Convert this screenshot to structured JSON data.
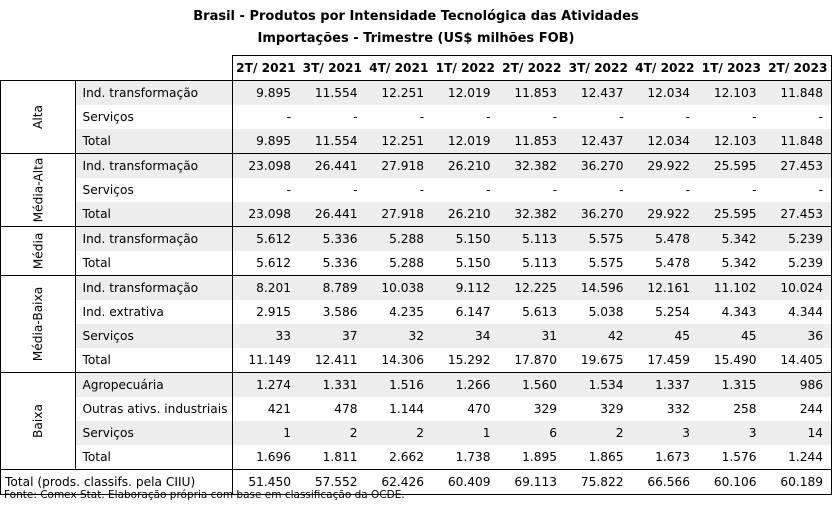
{
  "title_line1": "Brasil - Produtos por Intensidade Tecnológica das Atividades",
  "title_line2": "Importações - Trimestre (US$ milhões FOB)",
  "columns": [
    "2T/ 2021",
    "3T/ 2021",
    "4T/ 2021",
    "1T/ 2022",
    "2T/ 2022",
    "3T/ 2022",
    "4T/ 2022",
    "1T/ 2023",
    "2T/ 2023"
  ],
  "groups": [
    {
      "name": "Alta",
      "rows": [
        {
          "label": "Ind. transformação",
          "values": [
            "9.895",
            "11.554",
            "12.251",
            "12.019",
            "11.853",
            "12.437",
            "12.034",
            "12.103",
            "11.848"
          ]
        },
        {
          "label": "Serviços",
          "values": [
            "-",
            "-",
            "-",
            "-",
            "-",
            "-",
            "-",
            "-",
            "-"
          ]
        },
        {
          "label": "Total",
          "values": [
            "9.895",
            "11.554",
            "12.251",
            "12.019",
            "11.853",
            "12.437",
            "12.034",
            "12.103",
            "11.848"
          ]
        }
      ]
    },
    {
      "name": "Média-Alta",
      "rows": [
        {
          "label": "Ind. transformação",
          "values": [
            "23.098",
            "26.441",
            "27.918",
            "26.210",
            "32.382",
            "36.270",
            "29.922",
            "25.595",
            "27.453"
          ]
        },
        {
          "label": "Serviços",
          "values": [
            "-",
            "-",
            "-",
            "-",
            "-",
            "-",
            "-",
            "-",
            "-"
          ]
        },
        {
          "label": "Total",
          "values": [
            "23.098",
            "26.441",
            "27.918",
            "26.210",
            "32.382",
            "36.270",
            "29.922",
            "25.595",
            "27.453"
          ]
        }
      ]
    },
    {
      "name": "Média",
      "rows": [
        {
          "label": "Ind. transformação",
          "values": [
            "5.612",
            "5.336",
            "5.288",
            "5.150",
            "5.113",
            "5.575",
            "5.478",
            "5.342",
            "5.239"
          ]
        },
        {
          "label": "Total",
          "values": [
            "5.612",
            "5.336",
            "5.288",
            "5.150",
            "5.113",
            "5.575",
            "5.478",
            "5.342",
            "5.239"
          ]
        }
      ]
    },
    {
      "name": "Média-Baixa",
      "rows": [
        {
          "label": "Ind. transformação",
          "values": [
            "8.201",
            "8.789",
            "10.038",
            "9.112",
            "12.225",
            "14.596",
            "12.161",
            "11.102",
            "10.024"
          ]
        },
        {
          "label": "Ind. extrativa",
          "values": [
            "2.915",
            "3.586",
            "4.235",
            "6.147",
            "5.613",
            "5.038",
            "5.254",
            "4.343",
            "4.344"
          ]
        },
        {
          "label": "Serviços",
          "values": [
            "33",
            "37",
            "32",
            "34",
            "31",
            "42",
            "45",
            "45",
            "36"
          ]
        },
        {
          "label": "Total",
          "values": [
            "11.149",
            "12.411",
            "14.306",
            "15.292",
            "17.870",
            "19.675",
            "17.459",
            "15.490",
            "14.405"
          ]
        }
      ]
    },
    {
      "name": "Baixa",
      "rows": [
        {
          "label": "Agropecuária",
          "values": [
            "1.274",
            "1.331",
            "1.516",
            "1.266",
            "1.560",
            "1.534",
            "1.337",
            "1.315",
            "986"
          ]
        },
        {
          "label": "Outras ativs. industriais",
          "values": [
            "421",
            "478",
            "1.144",
            "470",
            "329",
            "329",
            "332",
            "258",
            "244"
          ]
        },
        {
          "label": "Serviços",
          "values": [
            "1",
            "2",
            "2",
            "1",
            "6",
            "2",
            "3",
            "3",
            "14"
          ]
        },
        {
          "label": "Total",
          "values": [
            "1.696",
            "1.811",
            "2.662",
            "1.738",
            "1.895",
            "1.865",
            "1.673",
            "1.576",
            "1.244"
          ]
        }
      ]
    }
  ],
  "grand_total": {
    "label": "Total (prods. classifs. pela CIIU)",
    "values": [
      "51.450",
      "57.552",
      "62.426",
      "60.409",
      "69.113",
      "75.822",
      "66.566",
      "60.106",
      "60.189"
    ]
  },
  "source": "Fonte: Comex Stat. Elaboração própria com base em classificação da OCDE."
}
